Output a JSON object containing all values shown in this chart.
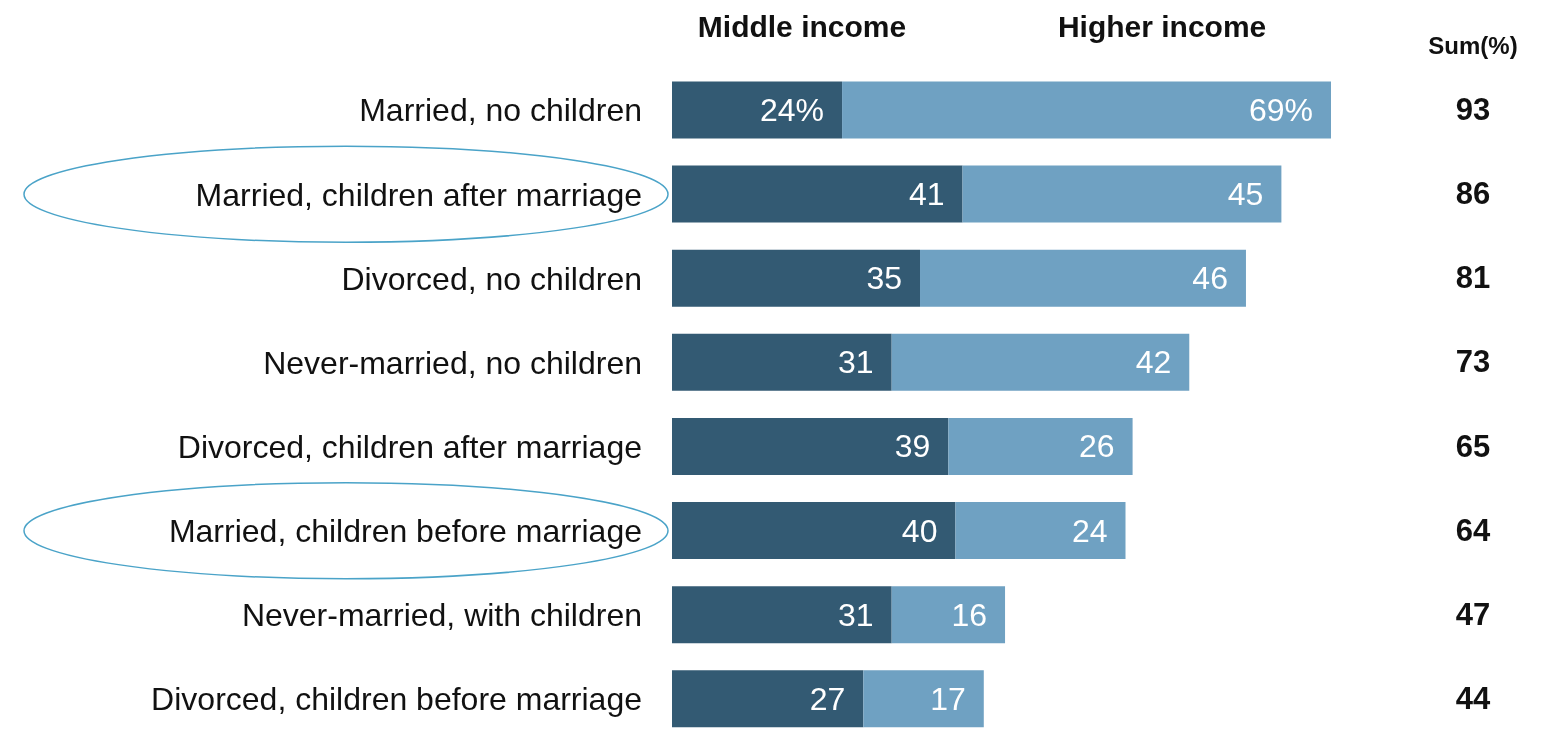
{
  "chart_data": {
    "type": "bar",
    "orientation": "horizontal",
    "stacked": true,
    "categories": [
      "Married, no children",
      "Married, children after marriage",
      "Divorced, no children",
      "Never-married, no children",
      "Divorced, children after marriage",
      "Married, children before marriage",
      "Never-married, with children",
      "Divorced, children before marriage"
    ],
    "series": [
      {
        "name": "Middle income",
        "color": "#335a73",
        "values": [
          24,
          41,
          35,
          31,
          39,
          40,
          31,
          27
        ],
        "value_labels": [
          "24%",
          "41",
          "35",
          "31",
          "39",
          "40",
          "31",
          "27"
        ]
      },
      {
        "name": "Higher income",
        "color": "#6fa1c2",
        "values": [
          69,
          45,
          46,
          42,
          26,
          24,
          16,
          17
        ],
        "value_labels": [
          "69%",
          "45",
          "46",
          "42",
          "26",
          "24",
          "16",
          "17"
        ]
      }
    ],
    "annotations": [
      "Sum(%)",
      "93",
      "86",
      "81",
      "73",
      "65",
      "64",
      "47",
      "44"
    ],
    "legend": "top"
  }
}
